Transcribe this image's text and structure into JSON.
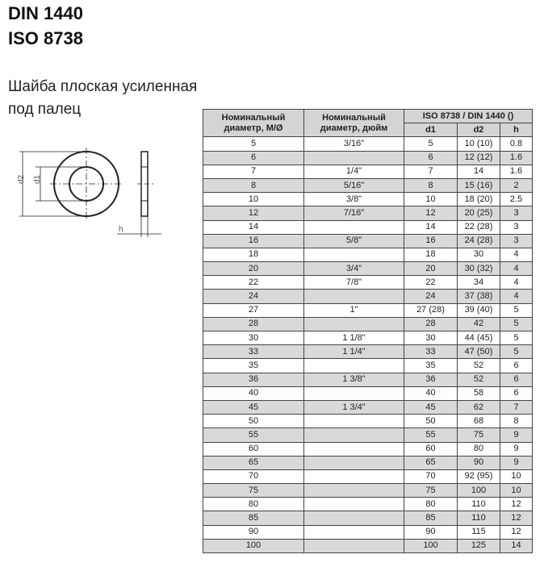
{
  "titles": [
    "DIN 1440",
    "ISO 8738"
  ],
  "subtitle": [
    "Шайба плоская усиленная",
    "под палец"
  ],
  "drawing": {
    "labels": {
      "d2": "d2",
      "d1": "d1",
      "h": "h"
    }
  },
  "table": {
    "header": {
      "col1": [
        "Номинальный",
        "диаметр, М/Ø"
      ],
      "col2": [
        "Номинальный",
        "диаметр, дюйм"
      ],
      "group": "ISO 8738 / DIN 1440 ()",
      "sub": [
        "d1",
        "d2",
        "h"
      ]
    },
    "rows": [
      [
        "5",
        "3/16\"",
        "5",
        "10 (10)",
        "0.8"
      ],
      [
        "6",
        "",
        "6",
        "12 (12)",
        "1.6"
      ],
      [
        "7",
        "1/4\"",
        "7",
        "14",
        "1.6"
      ],
      [
        "8",
        "5/16\"",
        "8",
        "15 (16)",
        "2"
      ],
      [
        "10",
        "3/8\"",
        "10",
        "18 (20)",
        "2.5"
      ],
      [
        "12",
        "7/16\"",
        "12",
        "20 (25)",
        "3"
      ],
      [
        "14",
        "",
        "14",
        "22 (28)",
        "3"
      ],
      [
        "16",
        "5/8\"",
        "16",
        "24 (28)",
        "3"
      ],
      [
        "18",
        "",
        "18",
        "30",
        "4"
      ],
      [
        "20",
        "3/4\"",
        "20",
        "30 (32)",
        "4"
      ],
      [
        "22",
        "7/8\"",
        "22",
        "34",
        "4"
      ],
      [
        "24",
        "",
        "24",
        "37 (38)",
        "4"
      ],
      [
        "27",
        "1\"",
        "27 (28)",
        "39 (40)",
        "5"
      ],
      [
        "28",
        "",
        "28",
        "42",
        "5"
      ],
      [
        "30",
        "1 1/8\"",
        "30",
        "44 (45)",
        "5"
      ],
      [
        "33",
        "1 1/4\"",
        "33",
        "47 (50)",
        "5"
      ],
      [
        "35",
        "",
        "35",
        "52",
        "6"
      ],
      [
        "36",
        "1 3/8\"",
        "36",
        "52",
        "6"
      ],
      [
        "40",
        "",
        "40",
        "58",
        "6"
      ],
      [
        "45",
        "1 3/4\"",
        "45",
        "62",
        "7"
      ],
      [
        "50",
        "",
        "50",
        "68",
        "8"
      ],
      [
        "55",
        "",
        "55",
        "75",
        "9"
      ],
      [
        "60",
        "",
        "60",
        "80",
        "9"
      ],
      [
        "65",
        "",
        "65",
        "90",
        "9"
      ],
      [
        "70",
        "",
        "70",
        "92 (95)",
        "10"
      ],
      [
        "75",
        "",
        "75",
        "100",
        "10"
      ],
      [
        "80",
        "",
        "80",
        "110",
        "12"
      ],
      [
        "85",
        "",
        "85",
        "110",
        "12"
      ],
      [
        "90",
        "",
        "90",
        "115",
        "12"
      ],
      [
        "100",
        "",
        "100",
        "125",
        "14"
      ]
    ]
  }
}
